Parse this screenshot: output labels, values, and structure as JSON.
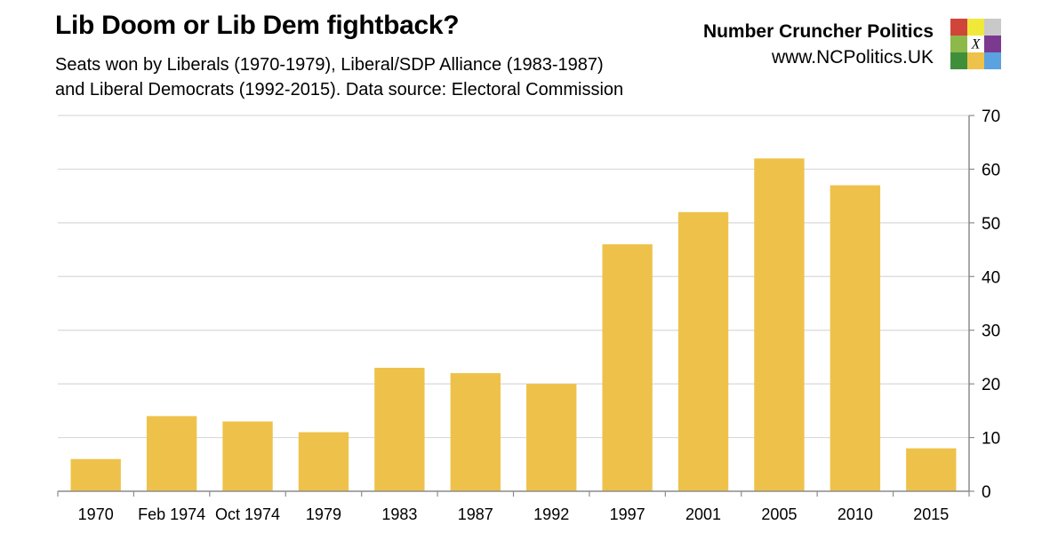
{
  "header": {
    "title": "Lib Doom or Lib Dem fightback?",
    "subtitle_line1": "Seats won by Liberals (1970-1979), Liberal/SDP Alliance (1983-1987)",
    "subtitle_line2": "and Liberal Democrats (1992-2015). Data source: Electoral Commission"
  },
  "branding": {
    "name": "Number Cruncher Politics",
    "url": "www.NCPolitics.UK",
    "logo_mark": "X",
    "logo_colors": [
      "#d0453a",
      "#f0e93a",
      "#c9c9c9",
      "#8db84a",
      "#ffffff",
      "#7b3a8f",
      "#3f8f3a",
      "#eec24a",
      "#5aa3e0"
    ]
  },
  "chart_data": {
    "type": "bar",
    "categories": [
      "1970",
      "Feb 1974",
      "Oct 1974",
      "1979",
      "1983",
      "1987",
      "1992",
      "1997",
      "2001",
      "2005",
      "2010",
      "2015"
    ],
    "values": [
      6,
      14,
      13,
      11,
      23,
      22,
      20,
      46,
      52,
      62,
      57,
      8
    ],
    "ylim": [
      0,
      70
    ],
    "yticks": [
      "0",
      "10",
      "20",
      "30",
      "40",
      "50",
      "60",
      "70"
    ],
    "y_axis_side": "right",
    "grid": true,
    "bar_color": "#eec24a",
    "grid_color": "#d9d9d9",
    "axis_color": "#8c8c8c"
  }
}
